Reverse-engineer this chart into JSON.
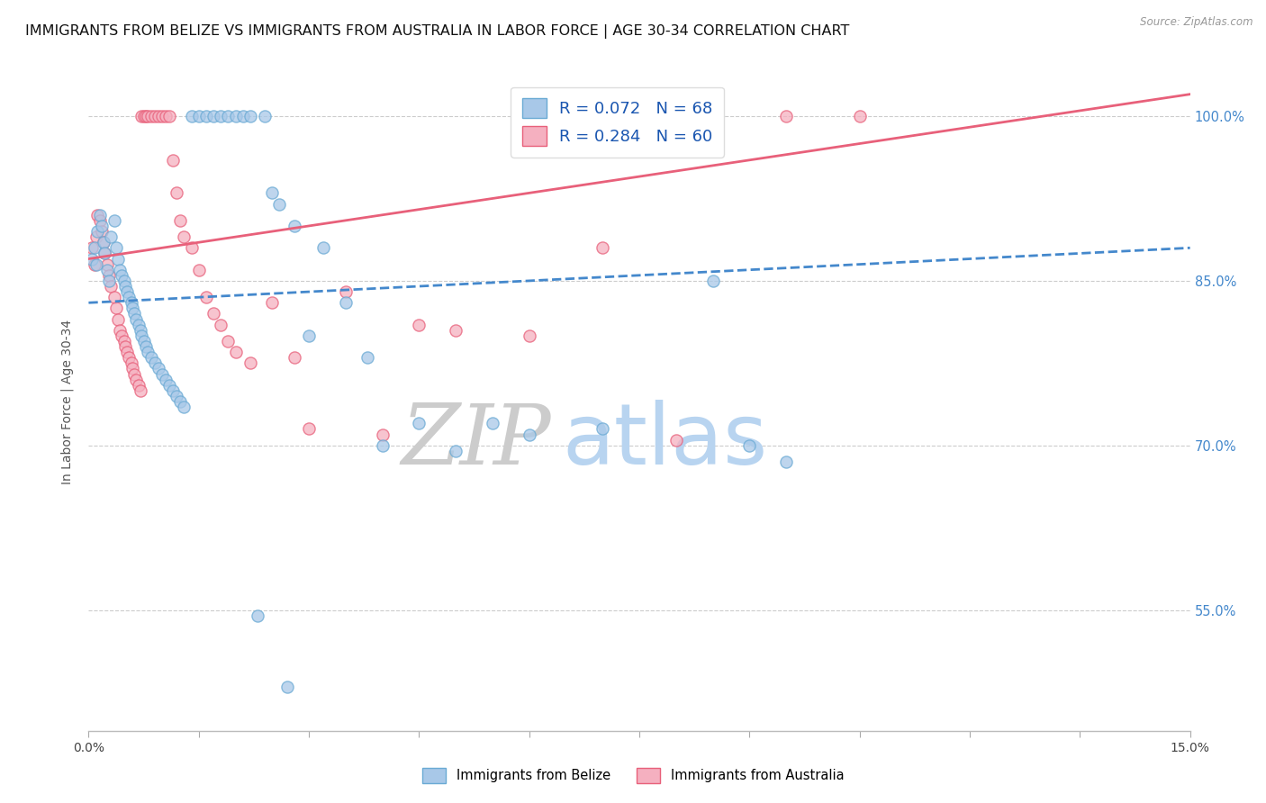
{
  "title": "IMMIGRANTS FROM BELIZE VS IMMIGRANTS FROM AUSTRALIA IN LABOR FORCE | AGE 30-34 CORRELATION CHART",
  "source": "Source: ZipAtlas.com",
  "ylabel": "In Labor Force | Age 30-34",
  "y_ticks": [
    55.0,
    70.0,
    85.0,
    100.0
  ],
  "y_tick_labels": [
    "55.0%",
    "70.0%",
    "85.0%",
    "100.0%"
  ],
  "x_min": 0.0,
  "x_max": 15.0,
  "y_min": 44.0,
  "y_max": 104.0,
  "belize_R": 0.072,
  "belize_N": 68,
  "australia_R": 0.284,
  "australia_N": 60,
  "belize_color": "#a8c8e8",
  "australia_color": "#f5b0c0",
  "belize_edge_color": "#6aaad4",
  "australia_edge_color": "#e8607a",
  "belize_line_color": "#4488cc",
  "australia_line_color": "#e8607a",
  "legend_label_belize": "Immigrants from Belize",
  "legend_label_australia": "Immigrants from Australia",
  "watermark_zip": "ZIP",
  "watermark_atlas": "atlas",
  "belize_scatter_x": [
    0.05,
    0.08,
    0.1,
    0.12,
    0.15,
    0.18,
    0.2,
    0.22,
    0.25,
    0.28,
    0.3,
    0.35,
    0.38,
    0.4,
    0.42,
    0.45,
    0.48,
    0.5,
    0.52,
    0.55,
    0.58,
    0.6,
    0.62,
    0.65,
    0.68,
    0.7,
    0.72,
    0.75,
    0.78,
    0.8,
    0.85,
    0.9,
    0.95,
    1.0,
    1.05,
    1.1,
    1.15,
    1.2,
    1.25,
    1.3,
    1.4,
    1.5,
    1.6,
    1.7,
    1.8,
    1.9,
    2.0,
    2.1,
    2.2,
    2.4,
    2.5,
    2.6,
    2.8,
    3.0,
    3.2,
    3.5,
    3.8,
    4.0,
    4.5,
    5.0,
    5.5,
    6.0,
    7.0,
    8.5,
    9.0,
    9.5,
    2.3,
    2.7
  ],
  "belize_scatter_y": [
    87.0,
    88.0,
    86.5,
    89.5,
    91.0,
    90.0,
    88.5,
    87.5,
    86.0,
    85.0,
    89.0,
    90.5,
    88.0,
    87.0,
    86.0,
    85.5,
    85.0,
    84.5,
    84.0,
    83.5,
    83.0,
    82.5,
    82.0,
    81.5,
    81.0,
    80.5,
    80.0,
    79.5,
    79.0,
    78.5,
    78.0,
    77.5,
    77.0,
    76.5,
    76.0,
    75.5,
    75.0,
    74.5,
    74.0,
    73.5,
    100.0,
    100.0,
    100.0,
    100.0,
    100.0,
    100.0,
    100.0,
    100.0,
    100.0,
    100.0,
    93.0,
    92.0,
    90.0,
    80.0,
    88.0,
    83.0,
    78.0,
    70.0,
    72.0,
    69.5,
    72.0,
    71.0,
    71.5,
    85.0,
    70.0,
    68.5,
    54.5,
    48.0
  ],
  "australia_scatter_x": [
    0.05,
    0.08,
    0.1,
    0.12,
    0.15,
    0.18,
    0.2,
    0.22,
    0.25,
    0.28,
    0.3,
    0.35,
    0.38,
    0.4,
    0.42,
    0.45,
    0.48,
    0.5,
    0.52,
    0.55,
    0.58,
    0.6,
    0.62,
    0.65,
    0.68,
    0.7,
    0.72,
    0.75,
    0.78,
    0.8,
    0.85,
    0.9,
    0.95,
    1.0,
    1.05,
    1.1,
    1.15,
    1.2,
    1.25,
    1.3,
    1.4,
    1.5,
    1.6,
    1.7,
    1.8,
    1.9,
    2.0,
    2.2,
    2.5,
    2.8,
    3.5,
    4.5,
    5.0,
    6.0,
    7.0,
    8.0,
    9.5,
    10.5,
    3.0,
    4.0
  ],
  "australia_scatter_y": [
    88.0,
    86.5,
    89.0,
    91.0,
    90.5,
    89.5,
    88.5,
    87.5,
    86.5,
    85.5,
    84.5,
    83.5,
    82.5,
    81.5,
    80.5,
    80.0,
    79.5,
    79.0,
    78.5,
    78.0,
    77.5,
    77.0,
    76.5,
    76.0,
    75.5,
    75.0,
    100.0,
    100.0,
    100.0,
    100.0,
    100.0,
    100.0,
    100.0,
    100.0,
    100.0,
    100.0,
    96.0,
    93.0,
    90.5,
    89.0,
    88.0,
    86.0,
    83.5,
    82.0,
    81.0,
    79.5,
    78.5,
    77.5,
    83.0,
    78.0,
    84.0,
    81.0,
    80.5,
    80.0,
    88.0,
    70.5,
    100.0,
    100.0,
    71.5,
    71.0
  ],
  "title_fontsize": 11.5,
  "label_fontsize": 10
}
